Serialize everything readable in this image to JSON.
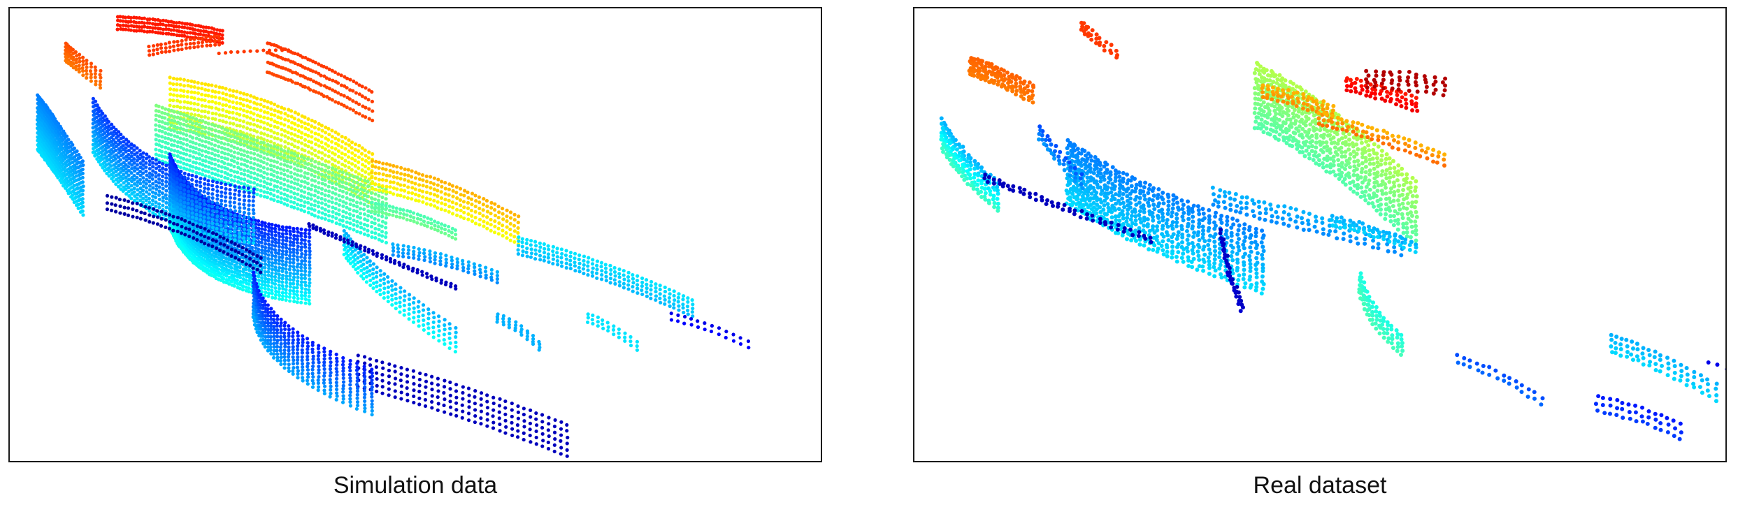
{
  "captions": {
    "left": "Simulation data",
    "right": "Real dataset"
  },
  "colormap": [
    "#00008f",
    "#0000ff",
    "#007fff",
    "#00ffff",
    "#7fff7f",
    "#ffff00",
    "#ff7f00",
    "#ff0000",
    "#7f0000"
  ],
  "panels": [
    {
      "id": "simulation",
      "description_icon": "point-cloud-render"
    },
    {
      "id": "real",
      "description_icon": "point-cloud-render"
    }
  ]
}
